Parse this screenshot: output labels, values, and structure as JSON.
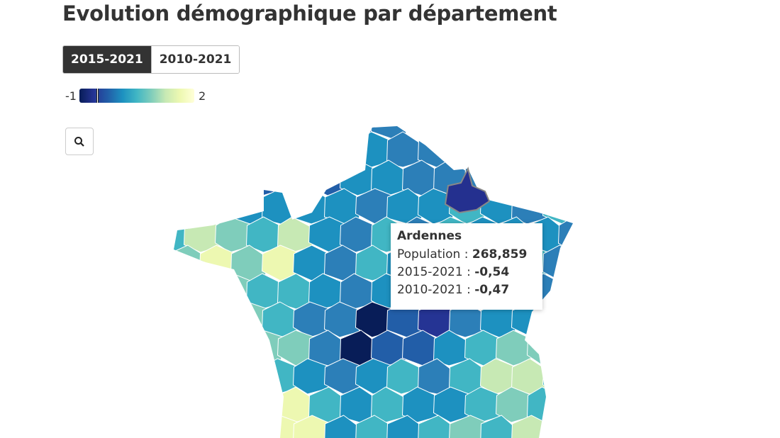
{
  "header": {
    "title": "Evolution démographique par département"
  },
  "toggle": {
    "options": [
      "2015-2021",
      "2010-2021"
    ]
  },
  "legend": {
    "min": -1,
    "max": 2
  },
  "tooltip": {
    "name": "Ardennes",
    "rows": [
      {
        "label": "Population :",
        "value": "268,859"
      },
      {
        "label": "2015-2021 :",
        "value": "-0,54"
      },
      {
        "label": "2010-2021 :",
        "value": "-0,47"
      }
    ]
  }
}
